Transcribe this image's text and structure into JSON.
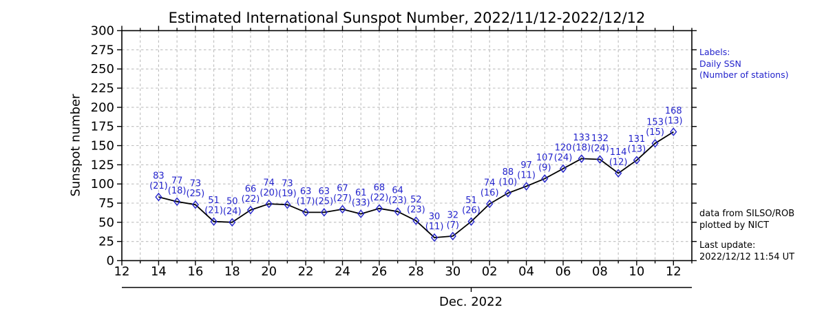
{
  "title": "Estimated International Sunspot Number, 2022/11/12-2022/12/12",
  "colors": {
    "accent_blue": "#2323cc",
    "line_black": "#000000",
    "grid_gray": "#bdbdbd",
    "background": "#ffffff"
  },
  "side_notes": {
    "labels_note": [
      "Labels:",
      "Daily SSN",
      "(Number of stations)"
    ],
    "credit": [
      "data from SILSO/ROB",
      "plotted by NICT"
    ],
    "last_update": [
      "Last update:",
      "2022/12/12 11:54 UT"
    ]
  },
  "chart_data": {
    "type": "line",
    "title": "Estimated International Sunspot Number, 2022/11/12-2022/12/12",
    "ylabel": "Sunspot number",
    "month_label": "Dec. 2022",
    "ylim": [
      0,
      300
    ],
    "y_ticks": [
      0,
      25,
      50,
      75,
      100,
      125,
      150,
      175,
      200,
      225,
      250,
      275,
      300
    ],
    "grid": true,
    "legend_position": "right-margin-text",
    "x_axis": {
      "start_date": "2022/11/12",
      "last_tick_date": "2022/12/12",
      "days_span": 31,
      "major_tick_step_days": 2,
      "minor_tick_step_days": 1,
      "major_tick_labels": [
        "12",
        "14",
        "16",
        "18",
        "20",
        "22",
        "24",
        "26",
        "28",
        "30",
        "02",
        "04",
        "06",
        "08",
        "10",
        "12"
      ],
      "month_tick_day_offset": 19
    },
    "series": [
      {
        "name": "Daily SSN",
        "marker": "open-diamond",
        "label_format": "value over (stations)",
        "points": [
          {
            "date": "11/14",
            "day_offset": 2,
            "ssn": 83,
            "stations": 21
          },
          {
            "date": "11/15",
            "day_offset": 3,
            "ssn": 77,
            "stations": 18
          },
          {
            "date": "11/16",
            "day_offset": 4,
            "ssn": 73,
            "stations": 25
          },
          {
            "date": "11/17",
            "day_offset": 5,
            "ssn": 51,
            "stations": 21
          },
          {
            "date": "11/18",
            "day_offset": 6,
            "ssn": 50,
            "stations": 24
          },
          {
            "date": "11/19",
            "day_offset": 7,
            "ssn": 66,
            "stations": 22
          },
          {
            "date": "11/20",
            "day_offset": 8,
            "ssn": 74,
            "stations": 20
          },
          {
            "date": "11/21",
            "day_offset": 9,
            "ssn": 73,
            "stations": 19
          },
          {
            "date": "11/22",
            "day_offset": 10,
            "ssn": 63,
            "stations": 17
          },
          {
            "date": "11/23",
            "day_offset": 11,
            "ssn": 63,
            "stations": 25
          },
          {
            "date": "11/24",
            "day_offset": 12,
            "ssn": 67,
            "stations": 27
          },
          {
            "date": "11/25",
            "day_offset": 13,
            "ssn": 61,
            "stations": 33
          },
          {
            "date": "11/26",
            "day_offset": 14,
            "ssn": 68,
            "stations": 22
          },
          {
            "date": "11/27",
            "day_offset": 15,
            "ssn": 64,
            "stations": 23
          },
          {
            "date": "11/28",
            "day_offset": 16,
            "ssn": 52,
            "stations": 23
          },
          {
            "date": "11/29",
            "day_offset": 17,
            "ssn": 30,
            "stations": 11
          },
          {
            "date": "11/30",
            "day_offset": 18,
            "ssn": 32,
            "stations": 7
          },
          {
            "date": "12/01",
            "day_offset": 19,
            "ssn": 51,
            "stations": 26
          },
          {
            "date": "12/02",
            "day_offset": 20,
            "ssn": 74,
            "stations": 16
          },
          {
            "date": "12/03",
            "day_offset": 21,
            "ssn": 88,
            "stations": 10
          },
          {
            "date": "12/04",
            "day_offset": 22,
            "ssn": 97,
            "stations": 11
          },
          {
            "date": "12/05",
            "day_offset": 23,
            "ssn": 107,
            "stations": 9
          },
          {
            "date": "12/06",
            "day_offset": 24,
            "ssn": 120,
            "stations": 24
          },
          {
            "date": "12/07",
            "day_offset": 25,
            "ssn": 133,
            "stations": 18
          },
          {
            "date": "12/08",
            "day_offset": 26,
            "ssn": 132,
            "stations": 24
          },
          {
            "date": "12/09",
            "day_offset": 27,
            "ssn": 114,
            "stations": 12
          },
          {
            "date": "12/10",
            "day_offset": 28,
            "ssn": 131,
            "stations": 13
          },
          {
            "date": "12/11",
            "day_offset": 29,
            "ssn": 153,
            "stations": 15
          },
          {
            "date": "12/12",
            "day_offset": 30,
            "ssn": 168,
            "stations": 13
          }
        ]
      }
    ]
  }
}
